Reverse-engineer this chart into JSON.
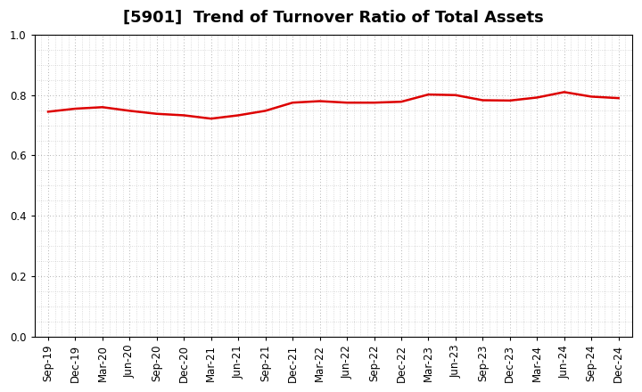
{
  "title": "[5901]  Trend of Turnover Ratio of Total Assets",
  "x_labels": [
    "Sep-19",
    "Dec-19",
    "Mar-20",
    "Jun-20",
    "Sep-20",
    "Dec-20",
    "Mar-21",
    "Jun-21",
    "Sep-21",
    "Dec-21",
    "Mar-22",
    "Jun-22",
    "Sep-22",
    "Dec-22",
    "Mar-23",
    "Jun-23",
    "Sep-23",
    "Dec-23",
    "Mar-24",
    "Jun-24",
    "Sep-24",
    "Dec-24"
  ],
  "y_values": [
    0.745,
    0.755,
    0.76,
    0.748,
    0.738,
    0.733,
    0.722,
    0.733,
    0.748,
    0.775,
    0.78,
    0.775,
    0.775,
    0.778,
    0.802,
    0.8,
    0.783,
    0.782,
    0.792,
    0.81,
    0.795,
    0.79
  ],
  "line_color": "#dd0000",
  "line_width": 1.8,
  "ylim": [
    0.0,
    1.0
  ],
  "yticks": [
    0.0,
    0.2,
    0.4,
    0.6,
    0.8,
    1.0
  ],
  "background_color": "#ffffff",
  "grid_color": "#999999",
  "title_fontsize": 13,
  "tick_fontsize": 8.5
}
